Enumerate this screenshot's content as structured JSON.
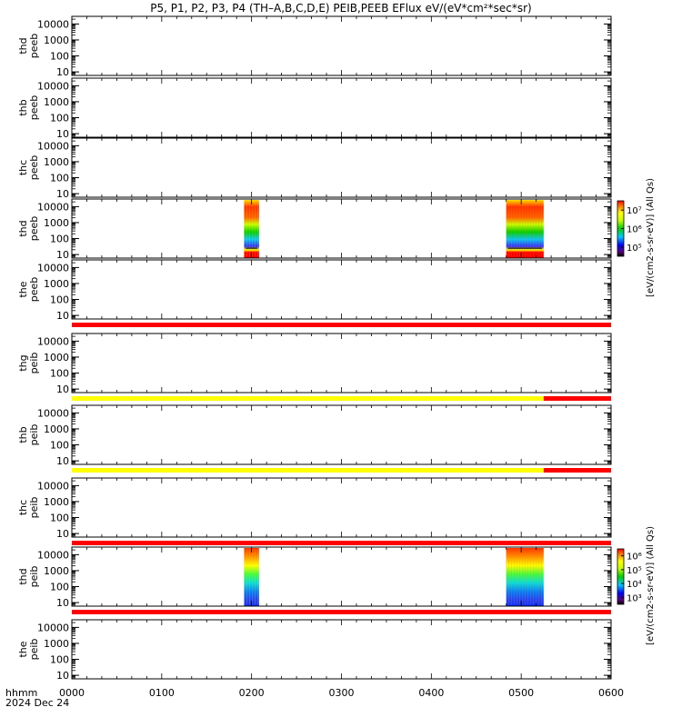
{
  "title": "P5, P1, P2, P3, P4 (TH–A,B,C,D,E) PEIB,PEEB EFlux eV/(eV*cm²*sec*sr)",
  "chart_data": {
    "type": "heatmap",
    "title": "P5, P1, P2, P3, P4 (TH–A,B,C,D,E) PEIB,PEEB EFlux eV/(eV*cm²*sec*sr)",
    "x_axis": {
      "label_line1": "hhmm",
      "label_line2": "2024 Dec 24",
      "ticks": [
        "0000",
        "0100",
        "0200",
        "0300",
        "0400",
        "0500",
        "0600"
      ],
      "range_hhmm": [
        "0000",
        "0600"
      ]
    },
    "y_scale": "log",
    "y_ticks": [
      "10",
      "100",
      "1000",
      "10000"
    ],
    "panels": [
      {
        "label1": "thd",
        "label2": "peeb",
        "data": false
      },
      {
        "label1": "thb",
        "label2": "peeb",
        "data": false
      },
      {
        "label1": "thc",
        "label2": "peeb",
        "data": false
      },
      {
        "label1": "thd",
        "label2": "peeb",
        "data": true,
        "intervals": [
          {
            "start": "0155",
            "end": "0205"
          },
          {
            "start": "0450",
            "end": "0515"
          }
        ],
        "colorbar": {
          "label": "[eV/(cm2-s-sr-eV)] (All Qs)",
          "ticks": [
            "10⁵",
            "10⁶",
            "10⁷"
          ]
        }
      },
      {
        "label1": "the",
        "label2": "peeb",
        "data": false,
        "status_bars": [
          {
            "start": "0000",
            "end": "0600",
            "color": "#ff0000"
          }
        ]
      },
      {
        "label1": "thg",
        "label2": "peib",
        "data": false,
        "status_bars": [
          {
            "start": "0000",
            "end": "0515",
            "color": "#ffff00"
          },
          {
            "start": "0515",
            "end": "0600",
            "color": "#ff0000"
          }
        ]
      },
      {
        "label1": "thb",
        "label2": "peib",
        "data": false,
        "status_bars": [
          {
            "start": "0000",
            "end": "0515",
            "color": "#ffff00"
          },
          {
            "start": "0515",
            "end": "0600",
            "color": "#ff0000"
          }
        ]
      },
      {
        "label1": "thc",
        "label2": "peib",
        "data": false,
        "status_bars": [
          {
            "start": "0000",
            "end": "0600",
            "color": "#ff0000"
          }
        ]
      },
      {
        "label1": "thd",
        "label2": "peib",
        "data": true,
        "intervals": [
          {
            "start": "0155",
            "end": "0205"
          },
          {
            "start": "0450",
            "end": "0515"
          }
        ],
        "colorbar": {
          "label": "[eV/(cm2-s-sr-eV)] (All Qs)",
          "ticks": [
            "10³",
            "10⁴",
            "10⁵",
            "10⁶"
          ]
        },
        "status_bars": [
          {
            "start": "0000",
            "end": "0600",
            "color": "#ff0000"
          }
        ]
      },
      {
        "label1": "the",
        "label2": "peib",
        "data": false
      }
    ]
  }
}
